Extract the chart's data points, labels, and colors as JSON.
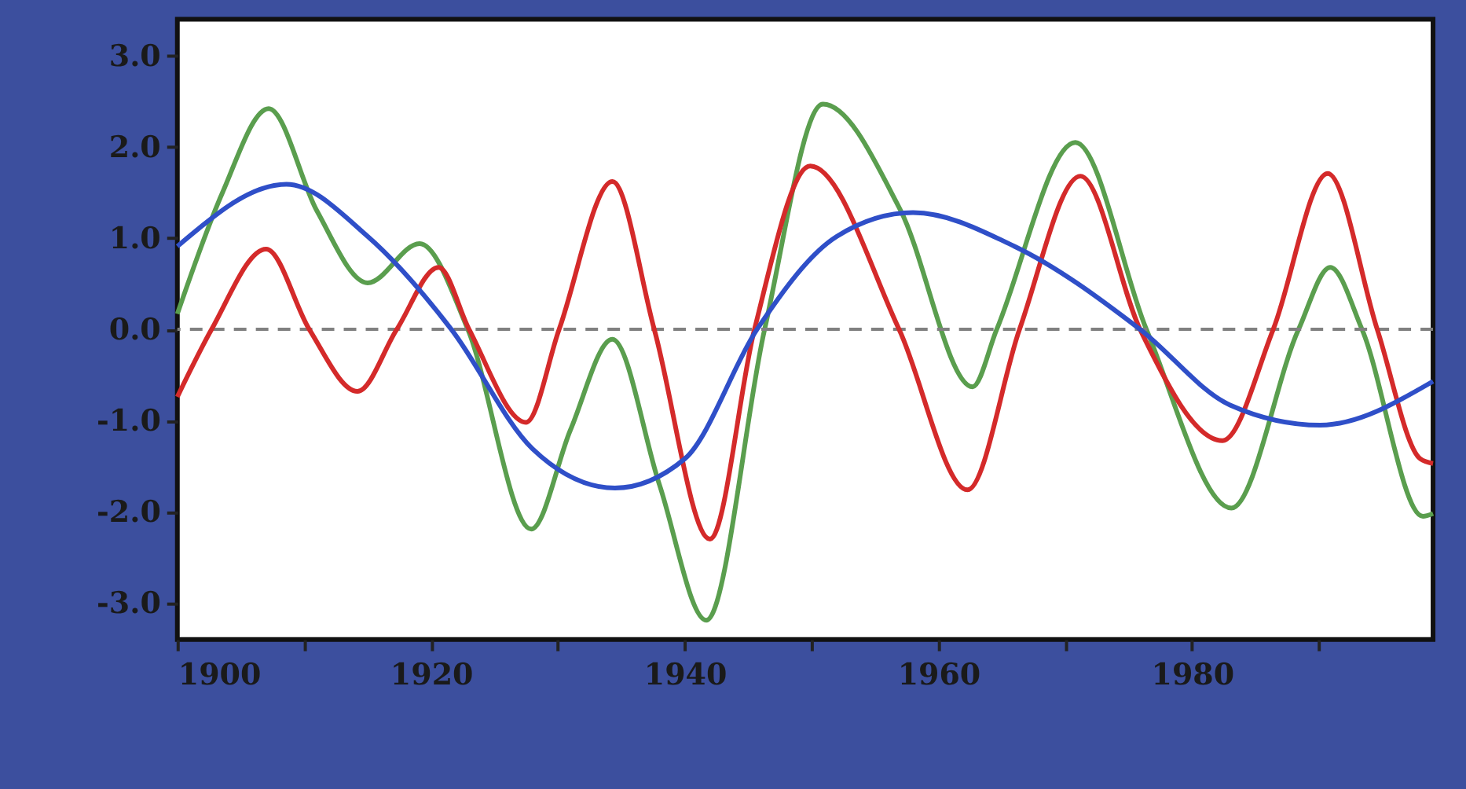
{
  "chart_data": {
    "type": "line",
    "xlim": [
      1900,
      1999
    ],
    "ylim": [
      -3.4,
      3.4
    ],
    "xticks": [
      1900,
      {
        "value": 1910,
        "label": null
      },
      1920,
      {
        "value": 1930,
        "label": null
      },
      1940,
      {
        "value": 1950,
        "label": null
      },
      1960,
      {
        "value": 1970,
        "label": null
      },
      1980,
      {
        "value": 1990,
        "label": null
      }
    ],
    "yticks": [
      {
        "value": 3,
        "label": "3.0"
      },
      {
        "value": 2,
        "label": "2.0"
      },
      {
        "value": 1,
        "label": "1.0"
      },
      {
        "value": 0,
        "label": "0.0"
      },
      {
        "value": -1,
        "label": "-1.0"
      },
      {
        "value": -2,
        "label": "-2.0"
      },
      {
        "value": -3,
        "label": "-3.0"
      }
    ],
    "grid": false,
    "marker": "none",
    "line_style": "solid",
    "ref_lines": [
      {
        "axis": "y",
        "value": 0,
        "label": null,
        "color": "#808080",
        "line_style": "dashed"
      }
    ],
    "series": [
      {
        "color": "#5a9e4e",
        "x": [
          1900,
          1903.5,
          1907.2,
          1911,
          1915,
          1919.1,
          1922.9,
          1927.9,
          1931,
          1934.3,
          1938,
          1941.7,
          1946.3,
          1950.9,
          1957,
          1962.7,
          1964.6,
          1970.8,
          1976.4,
          1983.1,
          1988.4,
          1990.9,
          1993.4,
          1998.2,
          1999
        ],
        "values": [
          0.17,
          1.48,
          2.42,
          1.3,
          0.51,
          0.94,
          0.0,
          -2.19,
          -1.1,
          -0.11,
          -1.7,
          -3.19,
          0.0,
          2.47,
          1.31,
          -0.63,
          0.0,
          2.05,
          0.0,
          -1.96,
          0.0,
          0.68,
          0.0,
          -2.05,
          -2.02
        ]
      },
      {
        "color": "#d42a2a",
        "x": [
          1900,
          1902.7,
          1907.0,
          1910.4,
          1914.2,
          1917.3,
          1920.6,
          1923.0,
          1927.5,
          1930.1,
          1934.3,
          1937.6,
          1942.0,
          1945.5,
          1949.9,
          1956.9,
          1962.3,
          1966.4,
          1971.2,
          1975.9,
          1982.4,
          1986.4,
          1990.7,
          1994.6,
          1998.0,
          1999
        ],
        "values": [
          -0.74,
          0.0,
          0.88,
          0.0,
          -0.68,
          0.0,
          0.68,
          0.0,
          -1.02,
          0.0,
          1.62,
          0.0,
          -2.3,
          0.0,
          1.79,
          0.0,
          -1.76,
          0.0,
          1.68,
          0.0,
          -1.22,
          0.0,
          1.71,
          0.0,
          -1.42,
          -1.47
        ]
      },
      {
        "color": "#2f4fc8",
        "x": [
          1900,
          1908.6,
          1915,
          1921.6,
          1928,
          1934.5,
          1940,
          1945.7,
          1952,
          1958.0,
          1966,
          1975.9,
          1983,
          1990.1,
          1999
        ],
        "values": [
          0.91,
          1.59,
          1.02,
          0.0,
          -1.31,
          -1.74,
          -1.42,
          0.0,
          1.02,
          1.28,
          0.91,
          0.0,
          -0.83,
          -1.05,
          -0.57
        ]
      }
    ]
  }
}
